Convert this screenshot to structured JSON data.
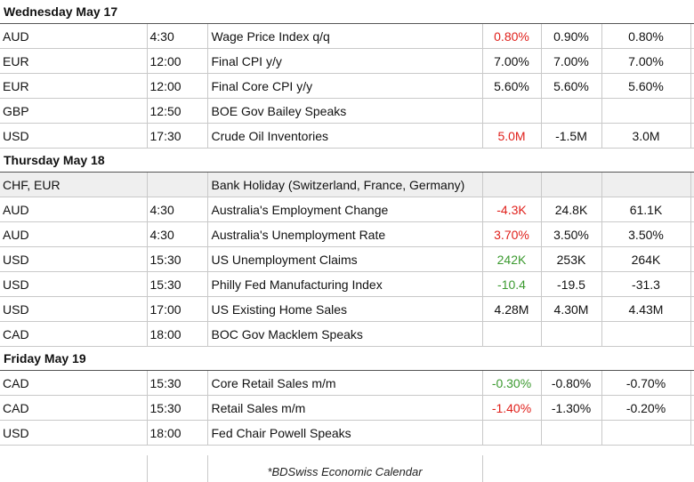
{
  "days": [
    {
      "date": "Wednesday May 17",
      "rows": [
        {
          "currency": "AUD",
          "time": "4:30",
          "event": "Wage Price Index q/q",
          "actual": "0.80%",
          "actual_color": "red",
          "forecast": "0.90%",
          "previous": "0.80%",
          "shaded": false
        },
        {
          "currency": "EUR",
          "time": "12:00",
          "event": "Final CPI y/y",
          "actual": "7.00%",
          "actual_color": "",
          "forecast": "7.00%",
          "previous": "7.00%",
          "shaded": false
        },
        {
          "currency": "EUR",
          "time": "12:00",
          "event": "Final Core CPI y/y",
          "actual": "5.60%",
          "actual_color": "",
          "forecast": "5.60%",
          "previous": "5.60%",
          "shaded": false
        },
        {
          "currency": "GBP",
          "time": "12:50",
          "event": "BOE Gov Bailey Speaks",
          "actual": "",
          "actual_color": "",
          "forecast": "",
          "previous": "",
          "shaded": false
        },
        {
          "currency": "USD",
          "time": "17:30",
          "event": "Crude Oil Inventories",
          "actual": "5.0M",
          "actual_color": "red",
          "forecast": "-1.5M",
          "previous": "3.0M",
          "shaded": false
        }
      ]
    },
    {
      "date": "Thursday May 18",
      "rows": [
        {
          "currency": "CHF, EUR",
          "time": "",
          "event": "Bank Holiday (Switzerland, France, Germany)",
          "actual": "",
          "actual_color": "",
          "forecast": "",
          "previous": "",
          "shaded": true
        },
        {
          "currency": "AUD",
          "time": "4:30",
          "event": "Australia's Employment Change",
          "actual": "-4.3K",
          "actual_color": "red",
          "forecast": "24.8K",
          "previous": "61.1K",
          "shaded": false
        },
        {
          "currency": "AUD",
          "time": "4:30",
          "event": "Australia's Unemployment Rate",
          "actual": "3.70%",
          "actual_color": "red",
          "forecast": "3.50%",
          "previous": "3.50%",
          "shaded": false
        },
        {
          "currency": "USD",
          "time": "15:30",
          "event": "US Unemployment Claims",
          "actual": "242K",
          "actual_color": "green",
          "forecast": "253K",
          "previous": "264K",
          "shaded": false
        },
        {
          "currency": "USD",
          "time": "15:30",
          "event": "Philly Fed Manufacturing Index",
          "actual": "-10.4",
          "actual_color": "green",
          "forecast": "-19.5",
          "previous": "-31.3",
          "shaded": false
        },
        {
          "currency": "USD",
          "time": "17:00",
          "event": "US Existing Home Sales",
          "actual": "4.28M",
          "actual_color": "",
          "forecast": "4.30M",
          "previous": "4.43M",
          "shaded": false
        },
        {
          "currency": "CAD",
          "time": "18:00",
          "event": "BOC Gov Macklem Speaks",
          "actual": "",
          "actual_color": "",
          "forecast": "",
          "previous": "",
          "shaded": false
        }
      ]
    },
    {
      "date": "Friday May 19",
      "rows": [
        {
          "currency": "CAD",
          "time": "15:30",
          "event": "Core Retail Sales m/m",
          "actual": "-0.30%",
          "actual_color": "green",
          "forecast": "-0.80%",
          "previous": "-0.70%",
          "shaded": false
        },
        {
          "currency": "CAD",
          "time": "15:30",
          "event": "Retail Sales m/m",
          "actual": "-1.40%",
          "actual_color": "red",
          "forecast": "-1.30%",
          "previous": "-0.20%",
          "shaded": false
        },
        {
          "currency": "USD",
          "time": "18:00",
          "event": "Fed Chair Powell Speaks",
          "actual": "",
          "actual_color": "",
          "forecast": "",
          "previous": "",
          "shaded": false
        }
      ]
    }
  ],
  "footer": {
    "note": "*BDSwiss Economic Calendar"
  },
  "colors": {
    "red": "#e0211c",
    "green": "#3c9a30",
    "shaded": "#efefef"
  }
}
